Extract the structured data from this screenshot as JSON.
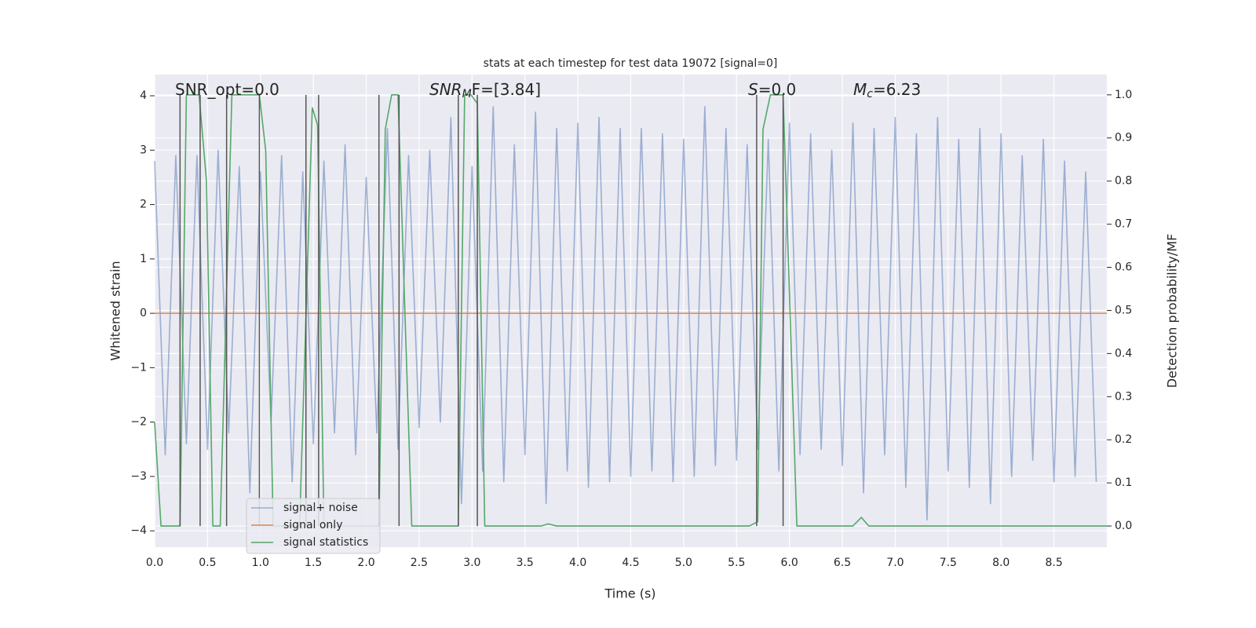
{
  "chart_data": {
    "type": "line",
    "title": "stats at each timestep for test data 19072 [signal=0]",
    "xlabel": "Time (s)",
    "ylabel": "Whitened strain",
    "y2label": "Detection probability/MF",
    "xlim": [
      0,
      9.0
    ],
    "ylim": [
      -4.3,
      4.39
    ],
    "y2lim": [
      -0.049,
      1.047
    ],
    "xticks": [
      {
        "value": 0,
        "label": "0.0"
      },
      {
        "value": 0.5,
        "label": "0.5"
      },
      {
        "value": 1,
        "label": "1.0"
      },
      {
        "value": 1.5,
        "label": "1.5"
      },
      {
        "value": 2,
        "label": "2.0"
      },
      {
        "value": 2.5,
        "label": "2.5"
      },
      {
        "value": 3,
        "label": "3.0"
      },
      {
        "value": 3.5,
        "label": "3.5"
      },
      {
        "value": 4,
        "label": "4.0"
      },
      {
        "value": 4.5,
        "label": "4.5"
      },
      {
        "value": 5,
        "label": "5.0"
      },
      {
        "value": 5.5,
        "label": "5.5"
      },
      {
        "value": 6,
        "label": "6.0"
      },
      {
        "value": 6.5,
        "label": "6.5"
      },
      {
        "value": 7,
        "label": "7.0"
      },
      {
        "value": 7.5,
        "label": "7.5"
      },
      {
        "value": 8,
        "label": "8.0"
      },
      {
        "value": 8.5,
        "label": "8.5"
      }
    ],
    "yticks": [
      {
        "value": -4,
        "label": "−4"
      },
      {
        "value": -3,
        "label": "−3"
      },
      {
        "value": -2,
        "label": "−2"
      },
      {
        "value": -1,
        "label": "−1"
      },
      0,
      1,
      2,
      3,
      4
    ],
    "y2ticks": [
      {
        "value": 0,
        "label": "0.0"
      },
      {
        "value": 0.1,
        "label": "0.1"
      },
      {
        "value": 0.2,
        "label": "0.2"
      },
      {
        "value": 0.3,
        "label": "0.3"
      },
      {
        "value": 0.4,
        "label": "0.4"
      },
      {
        "value": 0.5,
        "label": "0.5"
      },
      {
        "value": 0.6,
        "label": "0.6"
      },
      {
        "value": 0.7,
        "label": "0.7"
      },
      {
        "value": 0.8,
        "label": "0.8"
      },
      {
        "value": 0.9,
        "label": "0.9"
      },
      {
        "value": 1,
        "label": "1.0"
      }
    ],
    "grid": true,
    "legend": "lower left",
    "series": [
      {
        "name": "signal+ noise",
        "color": "#4c72b0",
        "opacity": 0.5,
        "x": [
          0,
          0.1,
          0.2,
          0.3,
          0.4,
          0.5,
          0.6,
          0.7,
          0.8,
          0.9,
          1,
          1.1,
          1.2,
          1.3,
          1.4,
          1.5,
          1.6,
          1.7,
          1.8,
          1.9,
          2,
          2.1,
          2.2,
          2.3,
          2.4,
          2.5,
          2.6,
          2.7,
          2.8,
          2.9,
          3,
          3.1,
          3.2,
          3.3,
          3.4,
          3.5,
          3.6,
          3.7,
          3.8,
          3.9,
          4,
          4.1,
          4.2,
          4.3,
          4.4,
          4.5,
          4.6,
          4.7,
          4.8,
          4.9,
          5,
          5.1,
          5.2,
          5.3,
          5.4,
          5.5,
          5.6,
          5.7,
          5.8,
          5.9,
          6,
          6.1,
          6.2,
          6.3,
          6.4,
          6.5,
          6.6,
          6.7,
          6.8,
          6.9,
          7,
          7.1,
          7.2,
          7.3,
          7.4,
          7.5,
          7.6,
          7.7,
          7.8,
          7.9,
          8,
          8.1,
          8.2,
          8.3,
          8.4,
          8.5,
          8.6,
          8.7,
          8.8,
          8.9
        ],
        "values": [
          2.8,
          -2.6,
          2.9,
          -2.4,
          2.9,
          -2.5,
          3.0,
          -2.2,
          2.7,
          -3.3,
          2.6,
          -2.0,
          2.9,
          -3.1,
          2.6,
          -2.4,
          2.8,
          -2.2,
          3.1,
          -2.6,
          2.5,
          -2.2,
          3.4,
          -2.5,
          2.9,
          -2.1,
          3.0,
          -2.0,
          3.6,
          -3.5,
          2.7,
          -2.9,
          3.8,
          -3.1,
          3.1,
          -2.6,
          3.7,
          -3.5,
          3.4,
          -2.9,
          3.5,
          -3.2,
          3.6,
          -3.1,
          3.4,
          -3.0,
          3.4,
          -2.9,
          3.3,
          -3.1,
          3.2,
          -3.0,
          3.8,
          -2.8,
          3.4,
          -2.7,
          3.1,
          -2.5,
          3.2,
          -2.9,
          3.5,
          -2.6,
          3.3,
          -2.5,
          3.0,
          -2.8,
          3.5,
          -3.3,
          3.4,
          -2.6,
          3.6,
          -3.2,
          3.3,
          -3.8,
          3.6,
          -2.9,
          3.2,
          -3.2,
          3.4,
          -3.5,
          3.3,
          -3.0,
          2.9,
          -2.7,
          3.2,
          -3.1,
          2.8,
          -3.0,
          2.6,
          -3.1
        ]
      },
      {
        "name": "signal only",
        "color": "#dd8452",
        "x": [
          0,
          9.0
        ],
        "values": [
          0,
          0
        ]
      },
      {
        "name": "signal statistics",
        "color": "#55a868",
        "axis": "y2",
        "x": [
          0,
          0.06,
          0.24,
          0.3,
          0.42,
          0.49,
          0.55,
          0.62,
          0.73,
          0.99,
          1.05,
          1.12,
          1.37,
          1.49,
          1.54,
          1.6,
          2.12,
          2.18,
          2.24,
          2.3,
          2.43,
          2.87,
          2.93,
          2.99,
          3.05,
          3.12,
          3.65,
          3.72,
          3.8,
          5.62,
          5.7,
          5.75,
          5.82,
          5.94,
          6.07,
          6.6,
          6.68,
          6.75,
          9.0
        ],
        "values": [
          0.24,
          0,
          0,
          1,
          1,
          0.8,
          0,
          0,
          1,
          1,
          0.87,
          0,
          0,
          0.97,
          0.93,
          0,
          0,
          0.92,
          1,
          1,
          0,
          0,
          1,
          1,
          0.98,
          0,
          0,
          0.005,
          0,
          0,
          0.01,
          0.92,
          1,
          1,
          0,
          0,
          0.02,
          0,
          0
        ]
      }
    ],
    "vlines": [
      0.24,
      0.43,
      0.68,
      0.99,
      1.43,
      1.55,
      2.12,
      2.31,
      2.87,
      3.05,
      5.69,
      5.94
    ],
    "annotations": [
      {
        "text": "SNR_opt=0.0"
      },
      {
        "text": "SNR",
        "sub": "M",
        "tail": "F=[3.84]"
      },
      {
        "text": "S",
        "tail": "=0.0"
      },
      {
        "text": "M",
        "sub": "c",
        "tail": "=6.23"
      }
    ]
  }
}
